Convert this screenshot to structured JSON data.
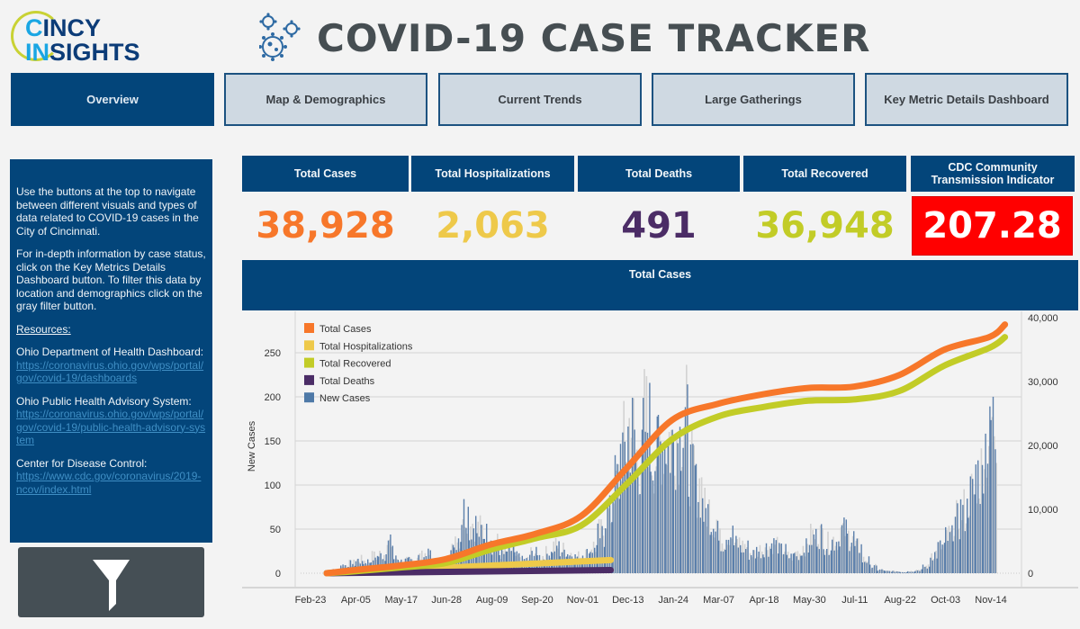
{
  "logo": {
    "line1_hi": "C",
    "line1_rest": "INCY",
    "line2_hi": "IN",
    "line2_rest": "SIGHTS"
  },
  "header": {
    "title": "COVID-19 CASE TRACKER",
    "icon": "virus-icon"
  },
  "nav": [
    {
      "label": "Overview",
      "active": true
    },
    {
      "label": "Map & Demographics",
      "active": false
    },
    {
      "label": "Current Trends",
      "active": false
    },
    {
      "label": "Large Gatherings",
      "active": false
    },
    {
      "label": "Key Metric Details Dashboard",
      "active": false
    }
  ],
  "sidebar": {
    "intro": "Use the buttons at the top to navigate between different visuals and types of data related to COVID-19 cases in the City of Cincinnati.",
    "details": "For in-depth information by case status, click on the Key Metrics Details Dashboard button. To filter this data by location and demographics click on the gray filter button.",
    "resources_label": "Resources:",
    "resources": [
      {
        "name": "Ohio Department of Health Dashboard:",
        "url": "https://coronavirus.ohio.gov/wps/portal/gov/covid-19/dashboards"
      },
      {
        "name": "Ohio Public Health Advisory System:",
        "url": "https://coronavirus.ohio.gov/wps/portal/gov/covid-19/public-health-advisory-system"
      },
      {
        "name": "Center for Disease Control:",
        "url": "https://www.cdc.gov/coronavirus/2019-ncov/index.html"
      }
    ],
    "filter_icon": "filter-funnel-icon"
  },
  "kpis": [
    {
      "label": "Total Cases",
      "value": "38,928",
      "color": "#f7772a"
    },
    {
      "label": "Total Hospitalizations",
      "value": "2,063",
      "color": "#eec94a"
    },
    {
      "label": "Total Deaths",
      "value": "491",
      "color": "#4b2c66"
    },
    {
      "label": "Total Recovered",
      "value": "36,948",
      "color": "#c2cc27"
    },
    {
      "label": "CDC Community Transmission Indicator",
      "value": "207.28",
      "color": "#ff0000"
    }
  ],
  "chart_header": "Total Cases",
  "chart_data": {
    "type": "bar+line",
    "title": "Total Cases",
    "ylabel": "New Cases",
    "ylabel_right": "",
    "ylim_left": [
      -20,
      290
    ],
    "yticks_left": [
      "0",
      "50",
      "100",
      "150",
      "200",
      "250"
    ],
    "ylim_right": [
      0,
      40000
    ],
    "yticks_right": [
      "0",
      "10,000",
      "20,000",
      "30,000",
      "40,000"
    ],
    "x_ticks": [
      "Feb-23",
      "Apr-05",
      "May-17",
      "Jun-28",
      "Aug-09",
      "Sep-20",
      "Nov-01",
      "Dec-13",
      "Jan-24",
      "Mar-07",
      "Apr-18",
      "May-30",
      "Jul-11",
      "Aug-22",
      "Oct-03",
      "Nov-14"
    ],
    "grid": true,
    "legend_position": "top-left",
    "legend": [
      {
        "name": "Total Cases",
        "color": "#f7772a"
      },
      {
        "name": "Total Hospitalizations",
        "color": "#eec94a"
      },
      {
        "name": "Total Recovered",
        "color": "#c2cc27"
      },
      {
        "name": "Total Deaths",
        "color": "#4b2c66"
      },
      {
        "name": "New Cases",
        "color": "#4e79a7"
      }
    ],
    "new_cases_weekly_estimate": {
      "note": "approx. peak daily new cases per week, starting week of Mar-08",
      "values": [
        2,
        5,
        12,
        15,
        20,
        18,
        25,
        28,
        45,
        22,
        18,
        20,
        25,
        28,
        15,
        20,
        35,
        55,
        95,
        75,
        65,
        60,
        45,
        30,
        35,
        25,
        20,
        30,
        25,
        30,
        40,
        35,
        30,
        25,
        30,
        40,
        60,
        90,
        140,
        190,
        220,
        170,
        230,
        180,
        200,
        200,
        210,
        230,
        160,
        130,
        95,
        80,
        50,
        60,
        45,
        40,
        30,
        35,
        40,
        45,
        35,
        25,
        30,
        40,
        55,
        60,
        45,
        50,
        65,
        55,
        40,
        20,
        10,
        5,
        3,
        3,
        2,
        3,
        5,
        10,
        30,
        40,
        55,
        80,
        95,
        120,
        150,
        200,
        230,
        280,
        180,
        160,
        140,
        120,
        110,
        95,
        80,
        75,
        60,
        65,
        85,
        90,
        80,
        70,
        65,
        80
      ]
    },
    "series_cumulative": [
      {
        "name": "Total Cases",
        "x": [
          "Mar-10",
          "Apr-05",
          "May-17",
          "Jun-28",
          "Aug-09",
          "Sep-20",
          "Nov-01",
          "Dec-13",
          "Jan-24",
          "Mar-07",
          "Apr-18",
          "May-30",
          "Jul-11",
          "Aug-22",
          "Oct-03",
          "Nov-14",
          "Nov-28"
        ],
        "values": [
          0,
          500,
          1200,
          2200,
          4500,
          6200,
          9000,
          16500,
          24000,
          26500,
          28000,
          29000,
          29200,
          31000,
          35000,
          37000,
          38928
        ]
      },
      {
        "name": "Total Recovered",
        "x": [
          "Mar-10",
          "Apr-05",
          "May-17",
          "Jun-28",
          "Aug-09",
          "Sep-20",
          "Nov-01",
          "Dec-13",
          "Jan-24",
          "Mar-07",
          "Apr-18",
          "May-30",
          "Jul-11",
          "Aug-22",
          "Oct-03",
          "Nov-14",
          "Nov-28"
        ],
        "values": [
          0,
          300,
          900,
          1600,
          3700,
          5500,
          7500,
          14000,
          21000,
          24500,
          26000,
          27000,
          27200,
          28500,
          32500,
          35300,
          36948
        ]
      },
      {
        "name": "Total Hospitalizations",
        "x": [
          "Mar-10",
          "Nov-28"
        ],
        "values": [
          0,
          2063
        ]
      },
      {
        "name": "Total Deaths",
        "x": [
          "Mar-10",
          "Nov-28"
        ],
        "values": [
          0,
          491
        ]
      }
    ]
  }
}
